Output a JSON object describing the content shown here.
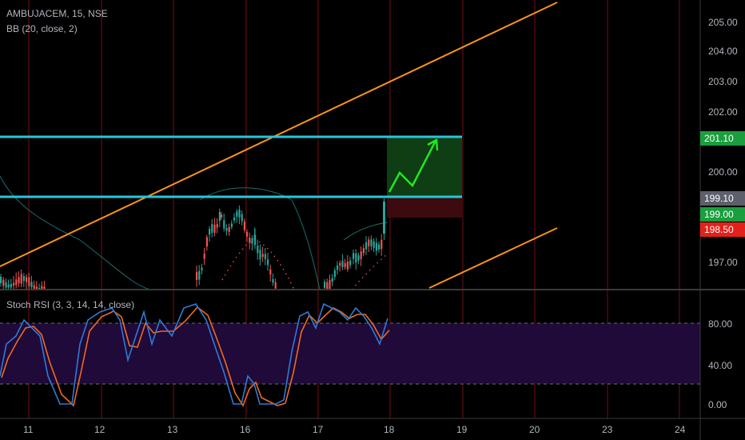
{
  "legend": {
    "symbol": "AMBUJACEM, 15, NSE",
    "indicator": "BB (20, close, 2)",
    "oscillator": "Stoch RSI (3, 3, 14, 14, close)"
  },
  "price_axis": {
    "ticks": [
      "205.00",
      "204.00",
      "203.00",
      "202.00",
      "200.00",
      "197.00"
    ],
    "tags": [
      {
        "label": "201.10",
        "color": "#1b9e3e"
      },
      {
        "label": "199.10",
        "color": "#5d606b"
      },
      {
        "label": "199.00",
        "color": "#1b9e3e"
      },
      {
        "label": "198.50",
        "color": "#e3211b"
      }
    ]
  },
  "osc_axis": {
    "ticks": [
      "80.00",
      "40.00",
      "0.00"
    ]
  },
  "time_axis": {
    "ticks": [
      "11",
      "12",
      "13",
      "16",
      "17",
      "18",
      "19",
      "20",
      "23",
      "24"
    ]
  },
  "colors": {
    "bg": "#000000",
    "session_line": "#4a0a10",
    "channel": "#f7931a",
    "level": "#26c6da",
    "target_zone": "#0f3d14",
    "stop_zone": "#3d0b0f",
    "arrow": "#22e622",
    "bb_basis": "#e0434b",
    "bb_band": "#1a6b6b",
    "up_candle": "#26a69a",
    "down_candle": "#ef5350",
    "stoch_k": "#2f7bd8",
    "stoch_d": "#f06a1e",
    "osc_band": "#1f0a3a"
  }
}
